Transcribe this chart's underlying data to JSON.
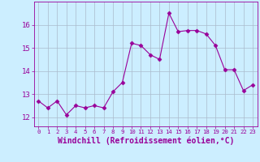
{
  "x": [
    0,
    1,
    2,
    3,
    4,
    5,
    6,
    7,
    8,
    9,
    10,
    11,
    12,
    13,
    14,
    15,
    16,
    17,
    18,
    19,
    20,
    21,
    22,
    23
  ],
  "y": [
    12.7,
    12.4,
    12.7,
    12.1,
    12.5,
    12.4,
    12.5,
    12.4,
    13.1,
    13.5,
    15.2,
    15.1,
    14.7,
    14.5,
    16.5,
    15.7,
    15.75,
    15.75,
    15.6,
    15.1,
    14.05,
    14.05,
    13.15,
    13.4
  ],
  "line_color": "#990099",
  "marker": "D",
  "marker_size": 2.5,
  "bg_color": "#cceeff",
  "grid_color": "#aabbcc",
  "xlabel": "Windchill (Refroidissement éolien,°C)",
  "xlabel_fontsize": 7,
  "tick_fontsize": 6.5,
  "ylim": [
    11.6,
    17.0
  ],
  "xlim": [
    -0.5,
    23.5
  ],
  "yticks": [
    12,
    13,
    14,
    15,
    16
  ],
  "xticks": [
    0,
    1,
    2,
    3,
    4,
    5,
    6,
    7,
    8,
    9,
    10,
    11,
    12,
    13,
    14,
    15,
    16,
    17,
    18,
    19,
    20,
    21,
    22,
    23
  ]
}
